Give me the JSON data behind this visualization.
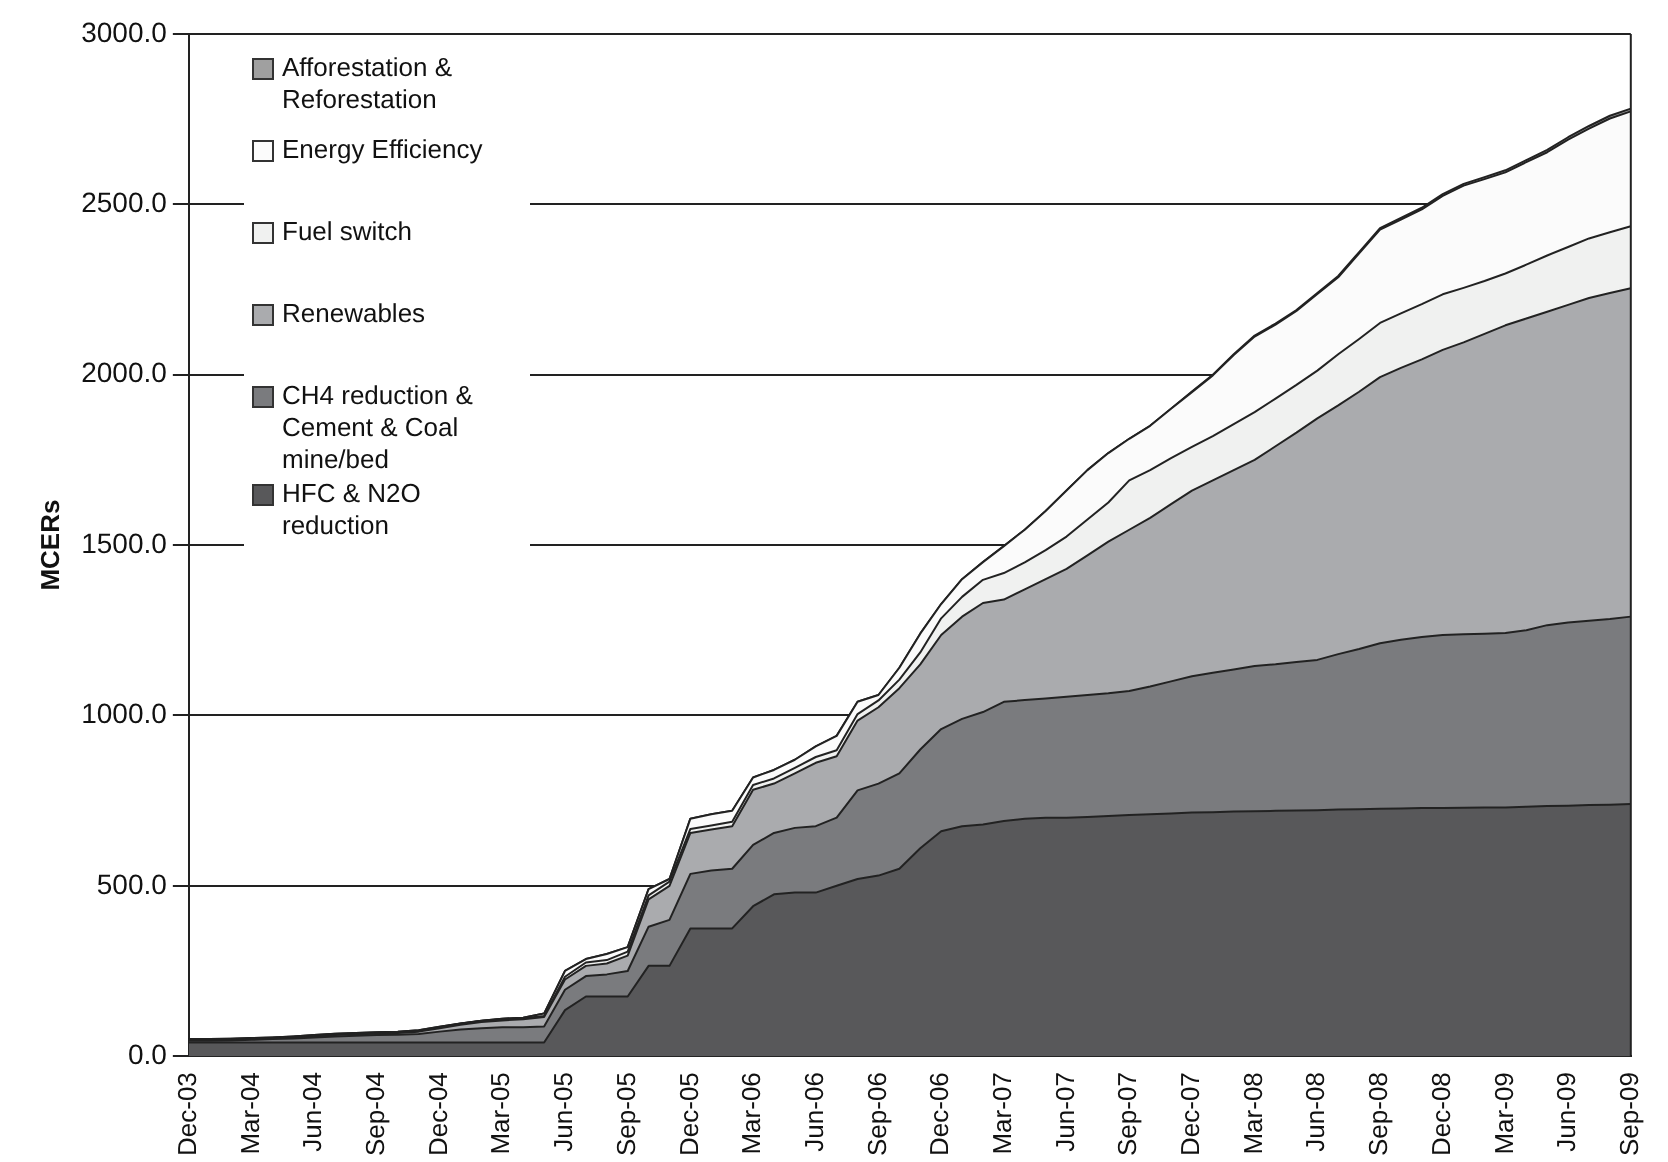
{
  "chart_data": {
    "type": "area",
    "stacked": true,
    "ylabel": "MCERs",
    "ylim": [
      0,
      3000
    ],
    "yticks": [
      {
        "value": 0,
        "label": "0.0"
      },
      {
        "value": 500,
        "label": "500.0"
      },
      {
        "value": 1000,
        "label": "1000.0"
      },
      {
        "value": 1500,
        "label": "1500.0"
      },
      {
        "value": 2000,
        "label": "2000.0"
      },
      {
        "value": 2500,
        "label": "2500.0"
      },
      {
        "value": 3000,
        "label": "3000.0"
      }
    ],
    "grid": "y",
    "legend": "top left",
    "categories": [
      "Dec-03",
      null,
      null,
      "Mar-04",
      null,
      null,
      "Jun-04",
      null,
      null,
      "Sep-04",
      null,
      null,
      "Dec-04",
      null,
      null,
      "Mar-05",
      null,
      null,
      "Jun-05",
      null,
      null,
      "Sep-05",
      null,
      null,
      "Dec-05",
      null,
      null,
      "Mar-06",
      null,
      null,
      "Jun-06",
      null,
      null,
      "Sep-06",
      null,
      null,
      "Dec-06",
      null,
      null,
      "Mar-07",
      null,
      null,
      "Jun-07",
      null,
      null,
      "Sep-07",
      null,
      null,
      "Dec-07",
      null,
      null,
      "Mar-08",
      null,
      null,
      "Jun-08",
      null,
      null,
      "Sep-08",
      null,
      null,
      "Dec-08",
      null,
      null,
      "Mar-09",
      null,
      null,
      "Jun-09",
      null,
      null,
      "Sep-09"
    ],
    "series": [
      {
        "name": "HFC & N2O reduction",
        "color": "#58585a",
        "values": [
          40,
          40,
          40,
          40,
          40,
          40,
          40,
          40,
          40,
          40,
          40,
          40,
          40,
          40,
          40,
          40,
          40,
          40,
          135,
          175,
          175,
          175,
          265,
          265,
          375,
          375,
          375,
          440,
          475,
          480,
          480,
          500,
          520,
          530,
          550,
          610,
          660,
          675,
          680,
          690,
          697,
          700,
          700,
          702,
          705,
          708,
          710,
          712,
          715,
          716,
          718,
          719,
          720,
          721,
          722,
          724,
          725,
          726,
          727,
          728,
          728,
          729,
          730,
          730,
          732,
          734,
          735,
          737,
          738,
          740
        ]
      },
      {
        "name": "CH4 reduction & Cement & Coal mine/bed",
        "color": "#7a7b7e",
        "values": [
          5,
          5,
          6,
          8,
          10,
          12,
          15,
          18,
          20,
          22,
          23,
          25,
          32,
          38,
          42,
          45,
          45,
          47,
          60,
          60,
          65,
          75,
          115,
          135,
          160,
          170,
          175,
          180,
          180,
          190,
          195,
          200,
          260,
          270,
          280,
          290,
          300,
          315,
          330,
          350,
          348,
          350,
          355,
          358,
          360,
          364,
          375,
          388,
          400,
          409,
          417,
          426,
          430,
          436,
          441,
          456,
          470,
          486,
          495,
          502,
          508,
          509,
          510,
          512,
          518,
          531,
          538,
          541,
          545,
          550
        ]
      },
      {
        "name": "Renewables",
        "color": "#aaabae",
        "values": [
          2,
          2,
          2,
          2,
          2,
          3,
          3,
          4,
          4,
          4,
          5,
          7,
          10,
          14,
          18,
          20,
          23,
          28,
          30,
          30,
          32,
          45,
          80,
          100,
          120,
          120,
          125,
          162,
          145,
          160,
          186,
          180,
          205,
          224,
          250,
          250,
          276,
          300,
          320,
          300,
          325,
          350,
          375,
          410,
          445,
          473,
          495,
          520,
          545,
          565,
          585,
          605,
          640,
          673,
          709,
          730,
          755,
          781,
          798,
          815,
          837,
          857,
          880,
          903,
          915,
          920,
          932,
          947,
          957,
          964
        ]
      },
      {
        "name": "Fuel switch",
        "color": "#f0f1f0",
        "values": [
          1,
          1,
          1,
          1,
          1,
          1,
          2,
          2,
          2,
          2,
          2,
          2,
          2,
          3,
          3,
          3,
          3,
          3,
          8,
          10,
          10,
          12,
          12,
          12,
          12,
          12,
          13,
          14,
          15,
          16,
          17,
          18,
          19,
          20,
          25,
          35,
          49,
          58,
          68,
          78,
          79,
          85,
          95,
          105,
          115,
          145,
          140,
          135,
          128,
          130,
          135,
          140,
          140,
          140,
          140,
          150,
          155,
          159,
          160,
          162,
          163,
          160,
          155,
          152,
          158,
          165,
          170,
          175,
          178,
          182
        ]
      },
      {
        "name": "Energy Efficiency",
        "color": "#fbfbfb",
        "values": [
          2,
          2,
          2,
          2,
          2,
          2,
          2,
          2,
          2,
          2,
          2,
          2,
          2,
          1,
          1,
          2,
          2,
          7,
          17,
          10,
          18,
          13,
          18,
          8,
          30,
          33,
          32,
          22,
          25,
          24,
          31,
          42,
          36,
          16,
          35,
          55,
          42,
          52,
          52,
          79,
          96,
          115,
          135,
          145,
          145,
          122,
          130,
          145,
          161,
          178,
          203,
          222,
          217,
          217,
          225,
          226,
          251,
          274,
          275,
          278,
          289,
          300,
          299,
          297,
          301,
          303,
          315,
          322,
          334,
          337
        ]
      },
      {
        "name": "Afforestation & Reforestation",
        "color": "#a0a0a0",
        "values": [
          0,
          0,
          0,
          0,
          0,
          0,
          0,
          0,
          0,
          0,
          0,
          0,
          0,
          0,
          0,
          0,
          0,
          0,
          0,
          0,
          0,
          0,
          0,
          0,
          0,
          0,
          0,
          0,
          0,
          0,
          0,
          0,
          0,
          0,
          0,
          0,
          0,
          0,
          0,
          0,
          0,
          0,
          0,
          0,
          0,
          0,
          0,
          0,
          2,
          2,
          2,
          3,
          3,
          3,
          3,
          4,
          4,
          4,
          5,
          5,
          5,
          5,
          6,
          6,
          6,
          7,
          7,
          8,
          8,
          8
        ]
      }
    ]
  }
}
